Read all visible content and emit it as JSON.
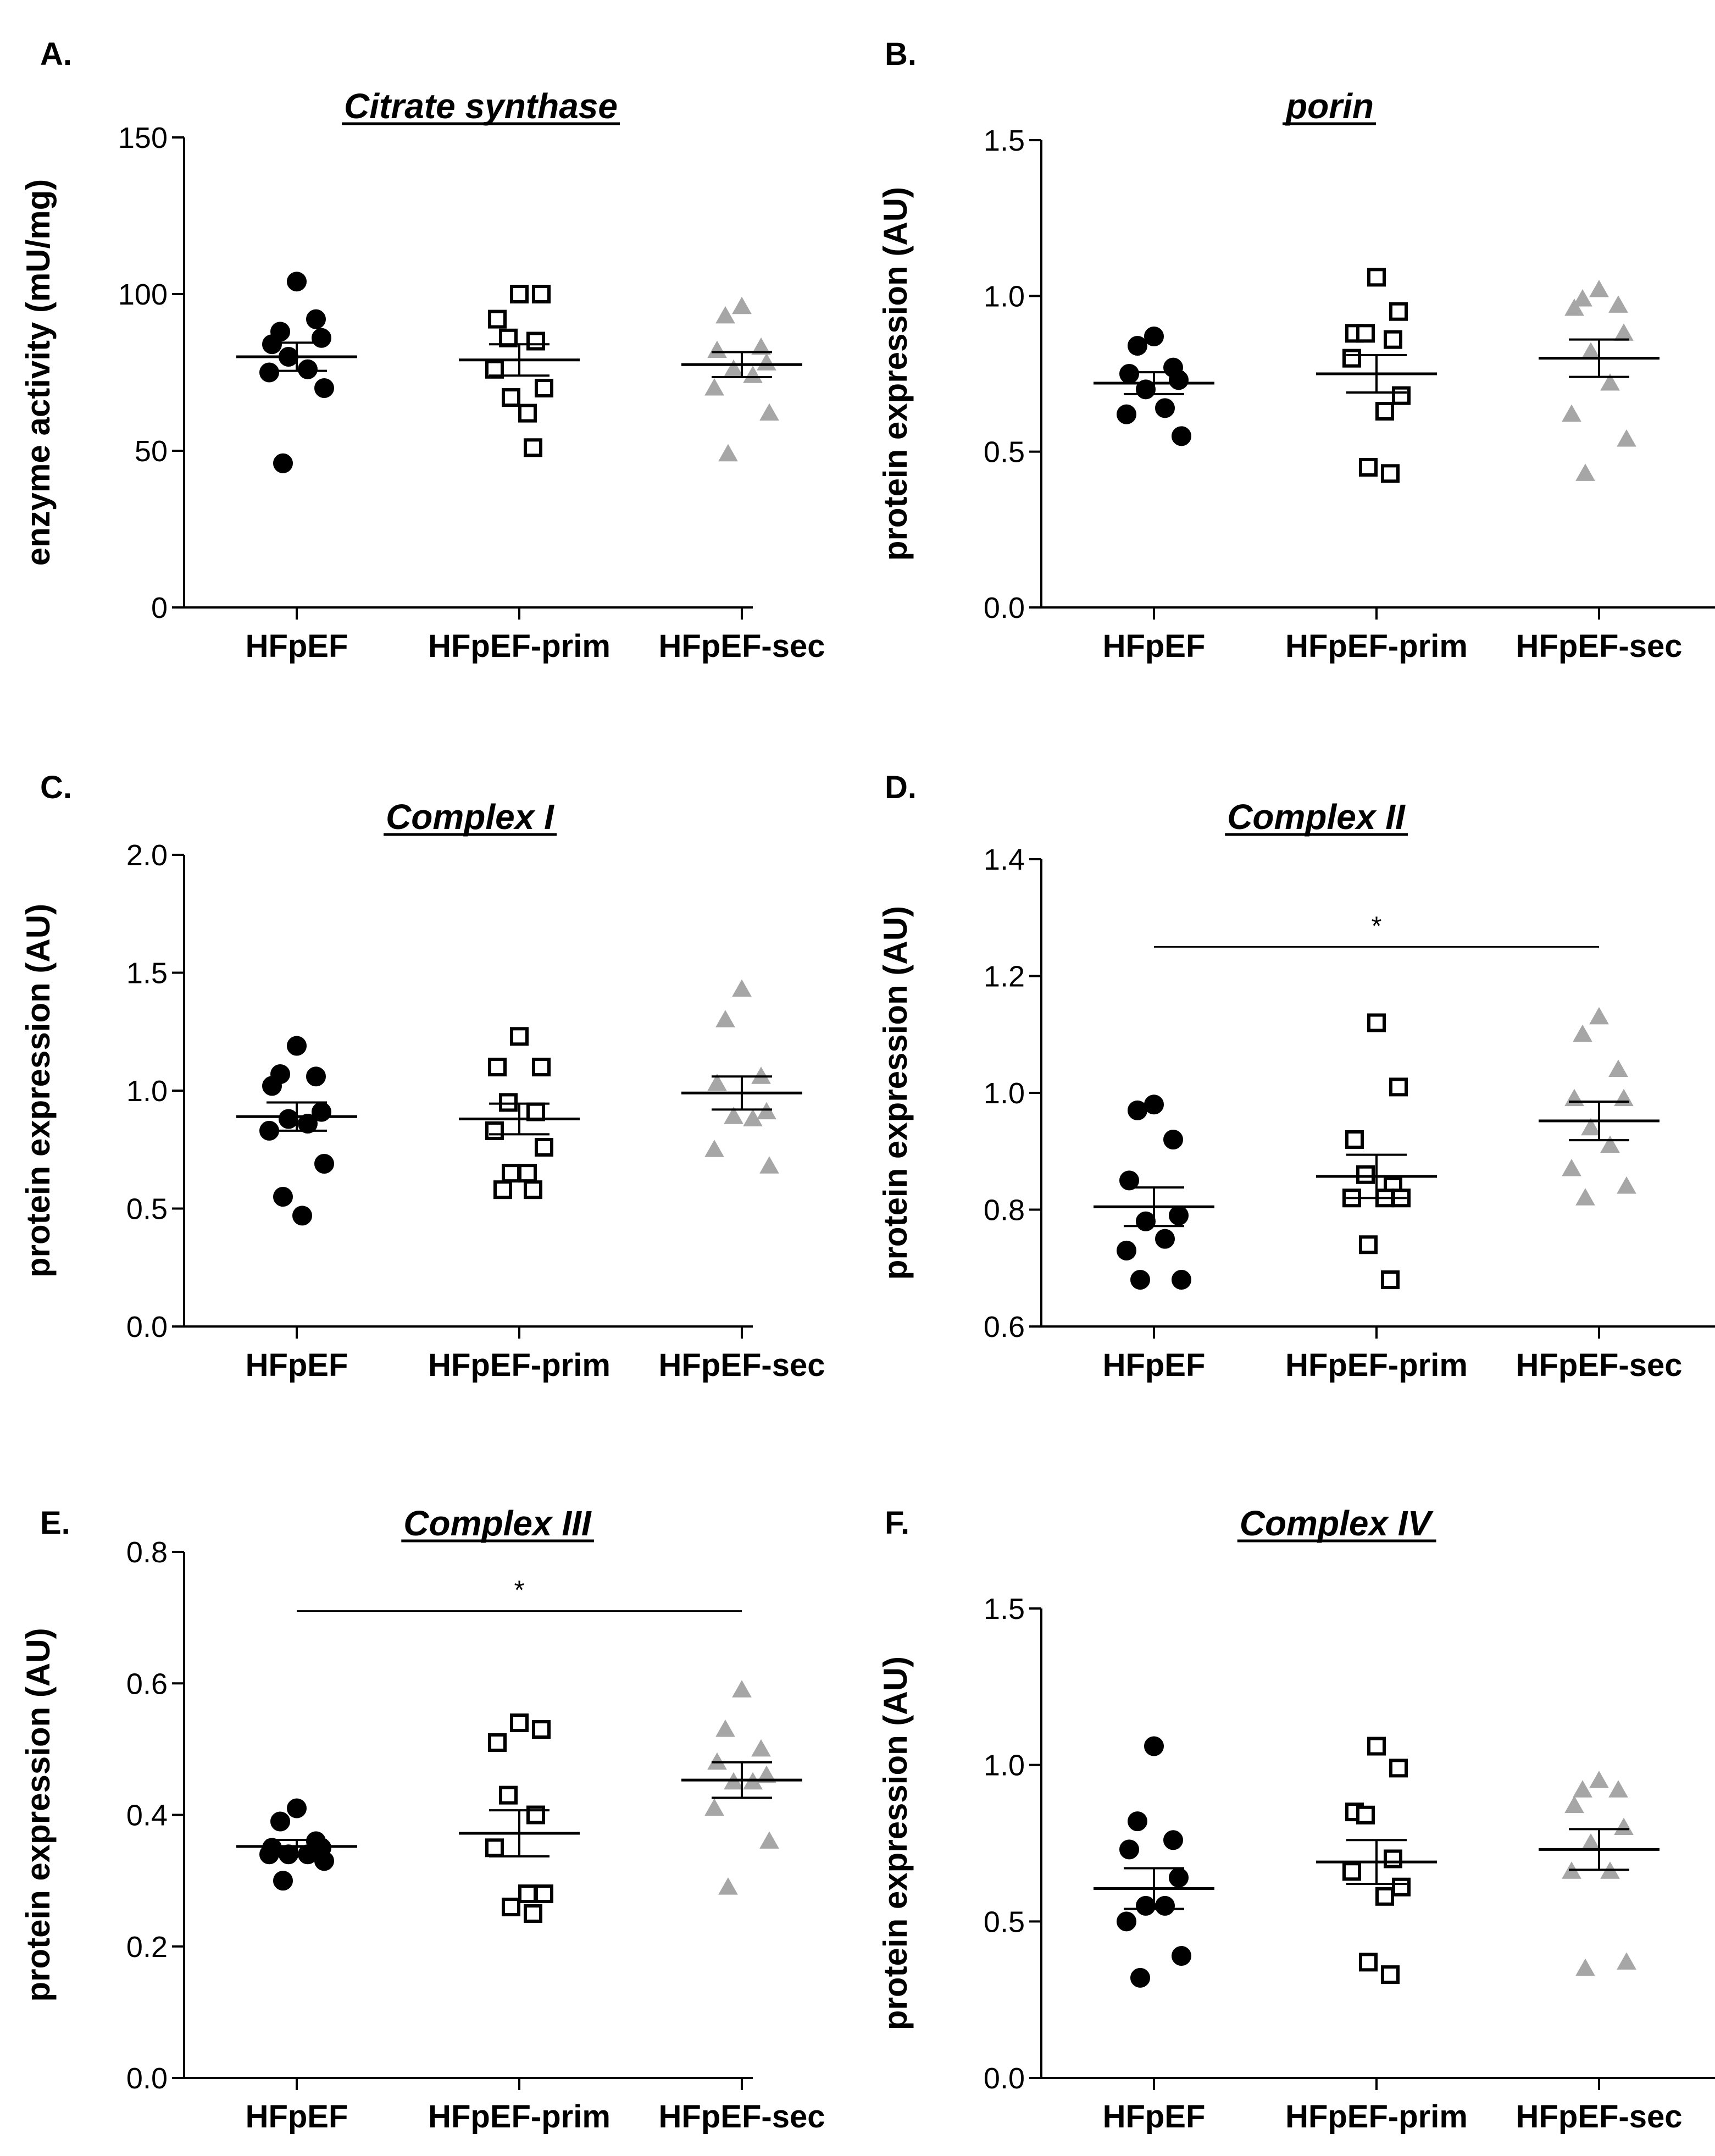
{
  "figure": {
    "groups": [
      "HFpEF",
      "HFpEF-prim",
      "HFpEF-sec"
    ],
    "marker_styles": [
      {
        "group": "HFpEF",
        "shape": "circle",
        "fill": "#000000",
        "stroke": "#000000"
      },
      {
        "group": "HFpEF-prim",
        "shape": "square",
        "fill": "#ffffff",
        "stroke": "#000000"
      },
      {
        "group": "HFpEF-sec",
        "shape": "triangle",
        "fill": "#a6a6a6",
        "stroke": "#a6a6a6"
      }
    ]
  },
  "chart_data": [
    {
      "type": "scatter",
      "letter": "A.",
      "title": "Citrate synthase",
      "ylabel": "enzyme activity (mU/mg)",
      "ylim": [
        0,
        150
      ],
      "yticks": [
        0,
        50,
        100,
        150
      ],
      "ytick_labels": [
        "0",
        "50",
        "100",
        "150"
      ],
      "categories": [
        "HFpEF",
        "HFpEF-prim",
        "HFpEF-sec"
      ],
      "series": [
        {
          "name": "HFpEF",
          "values": [
            104,
            88,
            92,
            84,
            86,
            80,
            76,
            75,
            70,
            46
          ],
          "mean": 80,
          "sem": 4.5
        },
        {
          "name": "HFpEF-prim",
          "values": [
            100,
            100,
            92,
            86,
            85,
            76,
            70,
            62,
            67,
            51
          ],
          "mean": 79,
          "sem": 5
        },
        {
          "name": "HFpEF-sec",
          "values": [
            96,
            93,
            83,
            82,
            78,
            76,
            74,
            70,
            62,
            49
          ],
          "mean": 77.5,
          "sem": 4
        }
      ]
    },
    {
      "type": "scatter",
      "letter": "B.",
      "title": "porin",
      "ylabel": "protein expression (AU)",
      "ylim": [
        0,
        1.5
      ],
      "yticks": [
        0,
        0.5,
        1.0,
        1.5
      ],
      "ytick_labels": [
        "0.0",
        "0.5",
        "1.0",
        "1.5"
      ],
      "categories": [
        "HFpEF",
        "HFpEF-prim",
        "HFpEF-sec"
      ],
      "series": [
        {
          "name": "HFpEF",
          "values": [
            0.87,
            0.84,
            0.77,
            0.75,
            0.73,
            0.7,
            0.64,
            0.62,
            0.55
          ],
          "mean": 0.72,
          "sem": 0.035
        },
        {
          "name": "HFpEF-prim",
          "values": [
            1.06,
            0.95,
            0.88,
            0.88,
            0.86,
            0.8,
            0.68,
            0.63,
            0.45,
            0.43
          ],
          "mean": 0.75,
          "sem": 0.06
        },
        {
          "name": "HFpEF-sec",
          "values": [
            1.02,
            0.99,
            0.97,
            0.96,
            0.88,
            0.82,
            0.72,
            0.62,
            0.54,
            0.43
          ],
          "mean": 0.8,
          "sem": 0.06
        }
      ]
    },
    {
      "type": "scatter",
      "letter": "C.",
      "title": "Complex I",
      "ylabel": "protein expression (AU)",
      "ylim": [
        0,
        2.0
      ],
      "yticks": [
        0,
        0.5,
        1.0,
        1.5,
        2.0
      ],
      "ytick_labels": [
        "0.0",
        "0.5",
        "1.0",
        "1.5",
        "2.0"
      ],
      "categories": [
        "HFpEF",
        "HFpEF-prim",
        "HFpEF-sec"
      ],
      "series": [
        {
          "name": "HFpEF",
          "values": [
            1.19,
            1.07,
            1.06,
            1.02,
            0.91,
            0.88,
            0.86,
            0.83,
            0.69,
            0.55,
            0.47
          ],
          "mean": 0.89,
          "sem": 0.06
        },
        {
          "name": "HFpEF-prim",
          "values": [
            1.23,
            1.1,
            1.1,
            0.95,
            0.91,
            0.83,
            0.76,
            0.65,
            0.65,
            0.58,
            0.58
          ],
          "mean": 0.88,
          "sem": 0.065
        },
        {
          "name": "HFpEF-sec",
          "values": [
            1.43,
            1.3,
            1.06,
            1.03,
            0.91,
            0.89,
            0.88,
            0.75,
            0.68
          ],
          "mean": 0.99,
          "sem": 0.07
        }
      ]
    },
    {
      "type": "scatter",
      "letter": "D.",
      "title": "Complex II",
      "ylabel": "protein expression (AU)",
      "ylim": [
        0.6,
        1.4
      ],
      "yticks": [
        0.6,
        0.8,
        1.0,
        1.2,
        1.4
      ],
      "ytick_labels": [
        "0.6",
        "0.8",
        "1.0",
        "1.2",
        "1.4"
      ],
      "categories": [
        "HFpEF",
        "HFpEF-prim",
        "HFpEF-sec"
      ],
      "significance": {
        "from": "HFpEF",
        "to": "HFpEF-sec",
        "y": 1.25,
        "label": "*"
      },
      "series": [
        {
          "name": "HFpEF",
          "values": [
            0.98,
            0.97,
            0.92,
            0.85,
            0.79,
            0.78,
            0.75,
            0.73,
            0.68,
            0.68
          ],
          "mean": 0.805,
          "sem": 0.033
        },
        {
          "name": "HFpEF-prim",
          "values": [
            1.12,
            1.01,
            0.92,
            0.86,
            0.84,
            0.82,
            0.82,
            0.82,
            0.74,
            0.68
          ],
          "mean": 0.857,
          "sem": 0.037
        },
        {
          "name": "HFpEF-sec",
          "values": [
            1.13,
            1.1,
            1.04,
            0.99,
            0.99,
            0.94,
            0.91,
            0.87,
            0.84,
            0.82
          ],
          "mean": 0.952,
          "sem": 0.033
        }
      ]
    },
    {
      "type": "scatter",
      "letter": "E.",
      "title": "Complex III",
      "ylabel": "protein expression (AU)",
      "ylim": [
        0,
        0.8
      ],
      "yticks": [
        0,
        0.2,
        0.4,
        0.6,
        0.8
      ],
      "ytick_labels": [
        "0.0",
        "0.2",
        "0.4",
        "0.6",
        "0.8"
      ],
      "categories": [
        "HFpEF",
        "HFpEF-prim",
        "HFpEF-sec"
      ],
      "significance": {
        "from": "HFpEF",
        "to": "HFpEF-sec",
        "y": 0.71,
        "label": "*"
      },
      "series": [
        {
          "name": "HFpEF",
          "values": [
            0.41,
            0.39,
            0.36,
            0.35,
            0.35,
            0.34,
            0.34,
            0.34,
            0.33,
            0.3
          ],
          "mean": 0.352,
          "sem": 0.01
        },
        {
          "name": "HFpEF-prim",
          "values": [
            0.54,
            0.53,
            0.51,
            0.43,
            0.4,
            0.35,
            0.28,
            0.28,
            0.26,
            0.25
          ],
          "mean": 0.372,
          "sem": 0.035
        },
        {
          "name": "HFpEF-sec",
          "values": [
            0.59,
            0.53,
            0.5,
            0.48,
            0.46,
            0.45,
            0.45,
            0.41,
            0.36,
            0.29
          ],
          "mean": 0.453,
          "sem": 0.027
        }
      ]
    },
    {
      "type": "scatter",
      "letter": "F.",
      "title": "Complex IV",
      "ylabel": "protein expression (AU)",
      "ylim": [
        0,
        1.5
      ],
      "yticks": [
        0,
        0.5,
        1.0,
        1.5
      ],
      "ytick_labels": [
        "0.0",
        "0.5",
        "1.0",
        "1.5"
      ],
      "categories": [
        "HFpEF",
        "HFpEF-prim",
        "HFpEF-sec"
      ],
      "series": [
        {
          "name": "HFpEF",
          "values": [
            1.06,
            0.82,
            0.76,
            0.73,
            0.64,
            0.55,
            0.55,
            0.5,
            0.39,
            0.32
          ],
          "mean": 0.605,
          "sem": 0.065
        },
        {
          "name": "HFpEF-prim",
          "values": [
            1.06,
            0.99,
            0.85,
            0.84,
            0.7,
            0.66,
            0.61,
            0.58,
            0.37,
            0.33
          ],
          "mean": 0.69,
          "sem": 0.07
        },
        {
          "name": "HFpEF-sec",
          "values": [
            0.95,
            0.92,
            0.92,
            0.87,
            0.8,
            0.75,
            0.66,
            0.66,
            0.37,
            0.35
          ],
          "mean": 0.73,
          "sem": 0.065
        }
      ]
    }
  ]
}
